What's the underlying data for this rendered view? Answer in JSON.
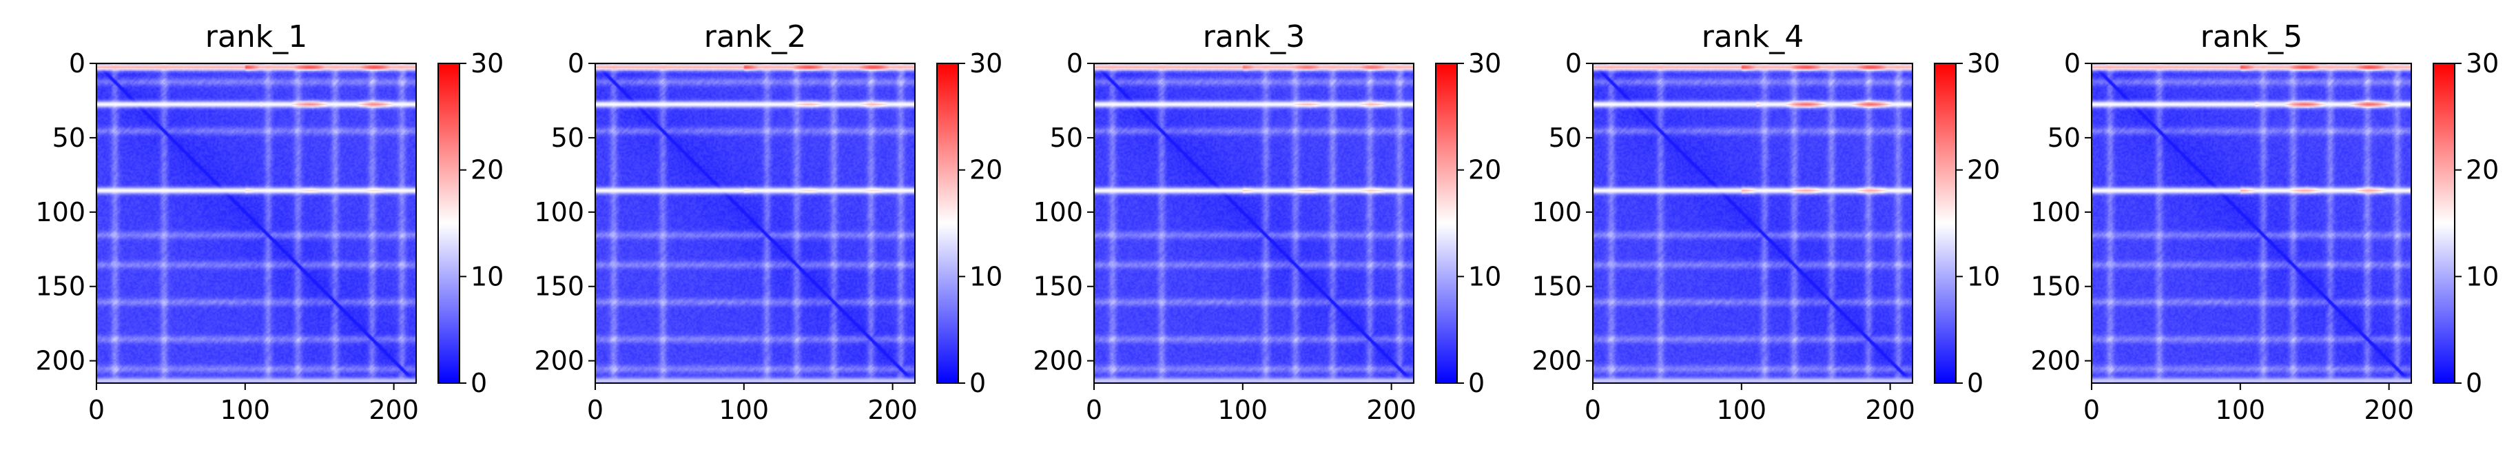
{
  "chart_data": [
    {
      "type": "heatmap",
      "title": "rank_1",
      "x_ticks": [
        0,
        100,
        200
      ],
      "y_ticks": [
        0,
        50,
        100,
        150,
        200
      ],
      "xlim": [
        0,
        215
      ],
      "ylim": [
        215,
        0
      ],
      "colorbar": {
        "ticks": [
          0,
          10,
          20,
          30
        ],
        "range": [
          0,
          30
        ],
        "colormap": "bwr"
      },
      "rows": 215,
      "cols": 215,
      "background_value": 4,
      "diagonal_value": 1.5,
      "hot_rows": [
        {
          "row": 2,
          "value": 20,
          "segments": [
            [
              100,
              215,
              26
            ]
          ]
        },
        {
          "row": 27,
          "value": 15,
          "segments": [
            [
              110,
              215,
              22
            ]
          ]
        },
        {
          "row": 85,
          "value": 15,
          "segments": [
            [
              100,
              215,
              17
            ]
          ]
        },
        {
          "row": 213,
          "value": 12,
          "segments": []
        }
      ],
      "light_bands": [
        12,
        45,
        115,
        135,
        160,
        185,
        205
      ]
    },
    {
      "type": "heatmap",
      "title": "rank_2",
      "x_ticks": [
        0,
        100,
        200
      ],
      "y_ticks": [
        0,
        50,
        100,
        150,
        200
      ],
      "xlim": [
        0,
        215
      ],
      "ylim": [
        215,
        0
      ],
      "colorbar": {
        "ticks": [
          0,
          10,
          20,
          30
        ],
        "range": [
          0,
          30
        ],
        "colormap": "bwr"
      },
      "rows": 215,
      "cols": 215,
      "background_value": 4,
      "diagonal_value": 1.5,
      "hot_rows": [
        {
          "row": 2,
          "value": 20,
          "segments": [
            [
              100,
              215,
              26
            ]
          ]
        },
        {
          "row": 27,
          "value": 15,
          "segments": [
            [
              120,
              215,
              19
            ]
          ]
        },
        {
          "row": 85,
          "value": 15,
          "segments": [
            [
              100,
              215,
              17
            ]
          ]
        },
        {
          "row": 213,
          "value": 12,
          "segments": []
        }
      ],
      "light_bands": [
        12,
        45,
        115,
        135,
        160,
        185,
        205
      ]
    },
    {
      "type": "heatmap",
      "title": "rank_3",
      "x_ticks": [
        0,
        100,
        200
      ],
      "y_ticks": [
        0,
        50,
        100,
        150,
        200
      ],
      "xlim": [
        0,
        215
      ],
      "ylim": [
        215,
        0
      ],
      "colorbar": {
        "ticks": [
          0,
          10,
          20,
          30
        ],
        "range": [
          0,
          30
        ],
        "colormap": "bwr"
      },
      "rows": 215,
      "cols": 215,
      "background_value": 4,
      "diagonal_value": 1.5,
      "hot_rows": [
        {
          "row": 2,
          "value": 20,
          "segments": [
            [
              100,
              215,
              24
            ]
          ]
        },
        {
          "row": 27,
          "value": 15,
          "segments": [
            [
              110,
              215,
              19
            ]
          ]
        },
        {
          "row": 85,
          "value": 15,
          "segments": [
            [
              100,
              215,
              18
            ]
          ]
        },
        {
          "row": 213,
          "value": 12,
          "segments": []
        }
      ],
      "light_bands": [
        12,
        45,
        115,
        135,
        160,
        185,
        205
      ]
    },
    {
      "type": "heatmap",
      "title": "rank_4",
      "x_ticks": [
        0,
        100,
        200
      ],
      "y_ticks": [
        0,
        50,
        100,
        150,
        200
      ],
      "xlim": [
        0,
        215
      ],
      "ylim": [
        215,
        0
      ],
      "colorbar": {
        "ticks": [
          0,
          10,
          20,
          30
        ],
        "range": [
          0,
          30
        ],
        "colormap": "bwr"
      },
      "rows": 215,
      "cols": 215,
      "background_value": 4,
      "diagonal_value": 1.5,
      "hot_rows": [
        {
          "row": 2,
          "value": 20,
          "segments": [
            [
              100,
              215,
              26
            ]
          ]
        },
        {
          "row": 27,
          "value": 15,
          "segments": [
            [
              110,
              215,
              24
            ]
          ]
        },
        {
          "row": 85,
          "value": 15,
          "segments": [
            [
              100,
              215,
              20
            ]
          ]
        },
        {
          "row": 213,
          "value": 12,
          "segments": []
        }
      ],
      "light_bands": [
        12,
        45,
        115,
        135,
        160,
        185,
        205
      ]
    },
    {
      "type": "heatmap",
      "title": "rank_5",
      "x_ticks": [
        0,
        100,
        200
      ],
      "y_ticks": [
        0,
        50,
        100,
        150,
        200
      ],
      "xlim": [
        0,
        215
      ],
      "ylim": [
        215,
        0
      ],
      "colorbar": {
        "ticks": [
          0,
          10,
          20,
          30
        ],
        "range": [
          0,
          30
        ],
        "colormap": "bwr"
      },
      "rows": 215,
      "cols": 215,
      "background_value": 4,
      "diagonal_value": 1.5,
      "hot_rows": [
        {
          "row": 2,
          "value": 20,
          "segments": [
            [
              100,
              215,
              26
            ]
          ]
        },
        {
          "row": 27,
          "value": 15,
          "segments": [
            [
              110,
              215,
              24
            ]
          ]
        },
        {
          "row": 85,
          "value": 15,
          "segments": [
            [
              100,
              215,
              20
            ]
          ]
        },
        {
          "row": 213,
          "value": 12,
          "segments": []
        }
      ],
      "light_bands": [
        12,
        45,
        115,
        135,
        160,
        185,
        205
      ]
    }
  ]
}
